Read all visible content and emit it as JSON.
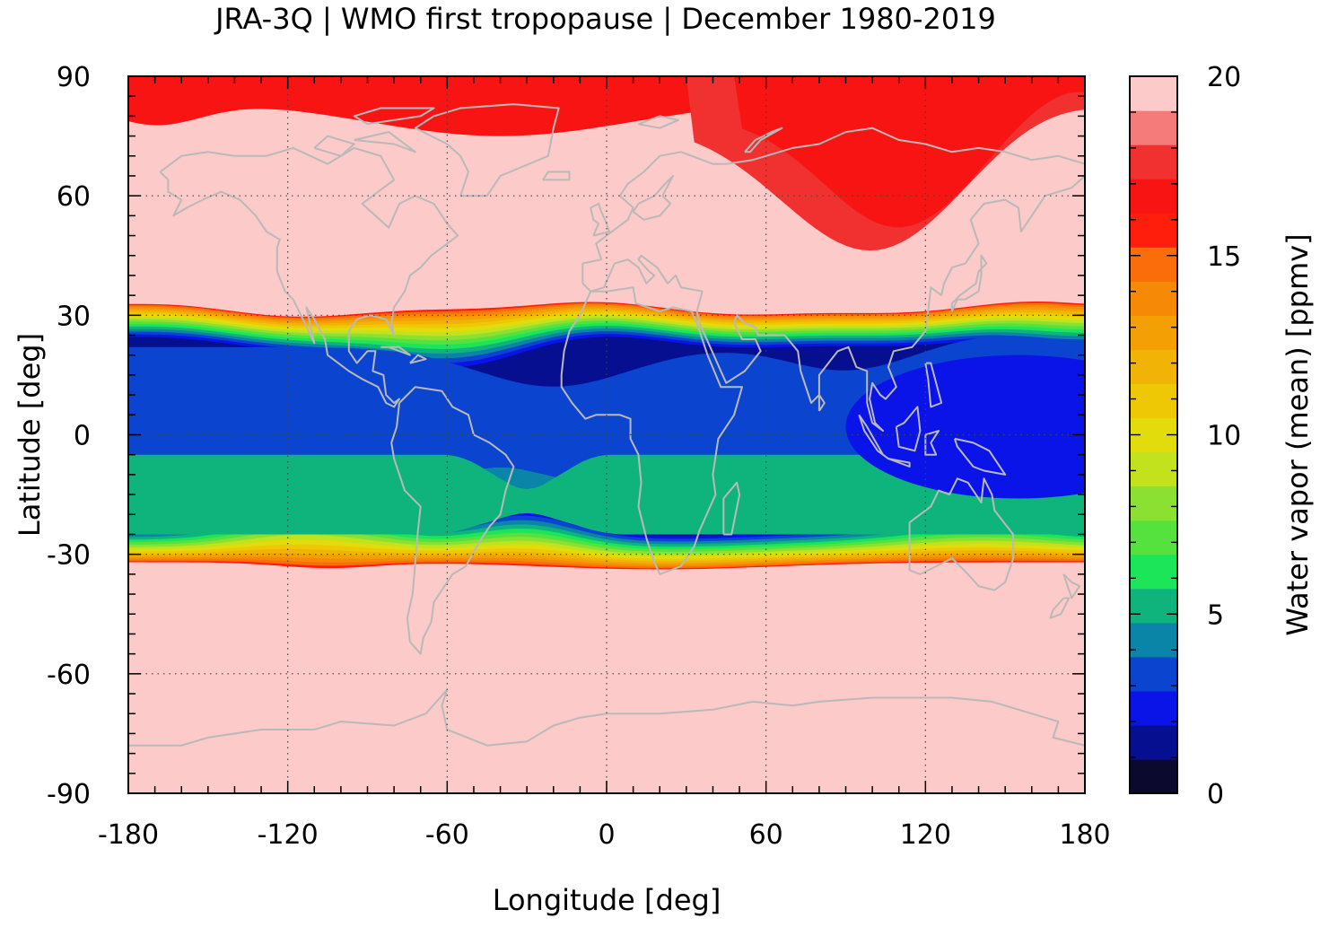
{
  "title": "JRA-3Q | WMO first tropopause | December 1980-2019",
  "chart_data": {
    "type": "heatmap",
    "xlabel": "Longitude [deg]",
    "ylabel": "Latitude [deg]",
    "xlim": [
      -180,
      180
    ],
    "ylim": [
      -90,
      90
    ],
    "xticks": [
      "-180",
      "-120",
      "-60",
      "0",
      "60",
      "120",
      "180"
    ],
    "yticks": [
      "90",
      "60",
      "30",
      "0",
      "-30",
      "-60",
      "-90"
    ],
    "grid": "dotted",
    "basemap": "coastlines",
    "colorbar": {
      "label": "Water vapor (mean) [ppmv]",
      "range": [
        0,
        20
      ],
      "step": 1,
      "ticks": [
        "0",
        "5",
        "10",
        "15",
        "20"
      ],
      "colors": [
        "#0b0a2e",
        "#060f8f",
        "#0a14e8",
        "#0a44cf",
        "#0a85a8",
        "#0fb47c",
        "#1ce55a",
        "#56e23e",
        "#8be032",
        "#c2e21e",
        "#e2dc0c",
        "#eec805",
        "#f1b406",
        "#f4a004",
        "#f68a06",
        "#fb6d0a",
        "#ff1e0c",
        "#f91414",
        "#f13030",
        "#f57b7b",
        "#fccac9"
      ]
    },
    "regions_ppmv": {
      "polar_and_midlatitude": 20,
      "arctic_cap": 17,
      "siberian_anomaly_core": 17,
      "siberian_anomaly_edge": 18,
      "subtropical_edge": 16,
      "tropics_main": 3,
      "western_pacific_minimum": 2,
      "southern_tropics_band": 4,
      "south_atlantic_tongue": 5
    }
  }
}
